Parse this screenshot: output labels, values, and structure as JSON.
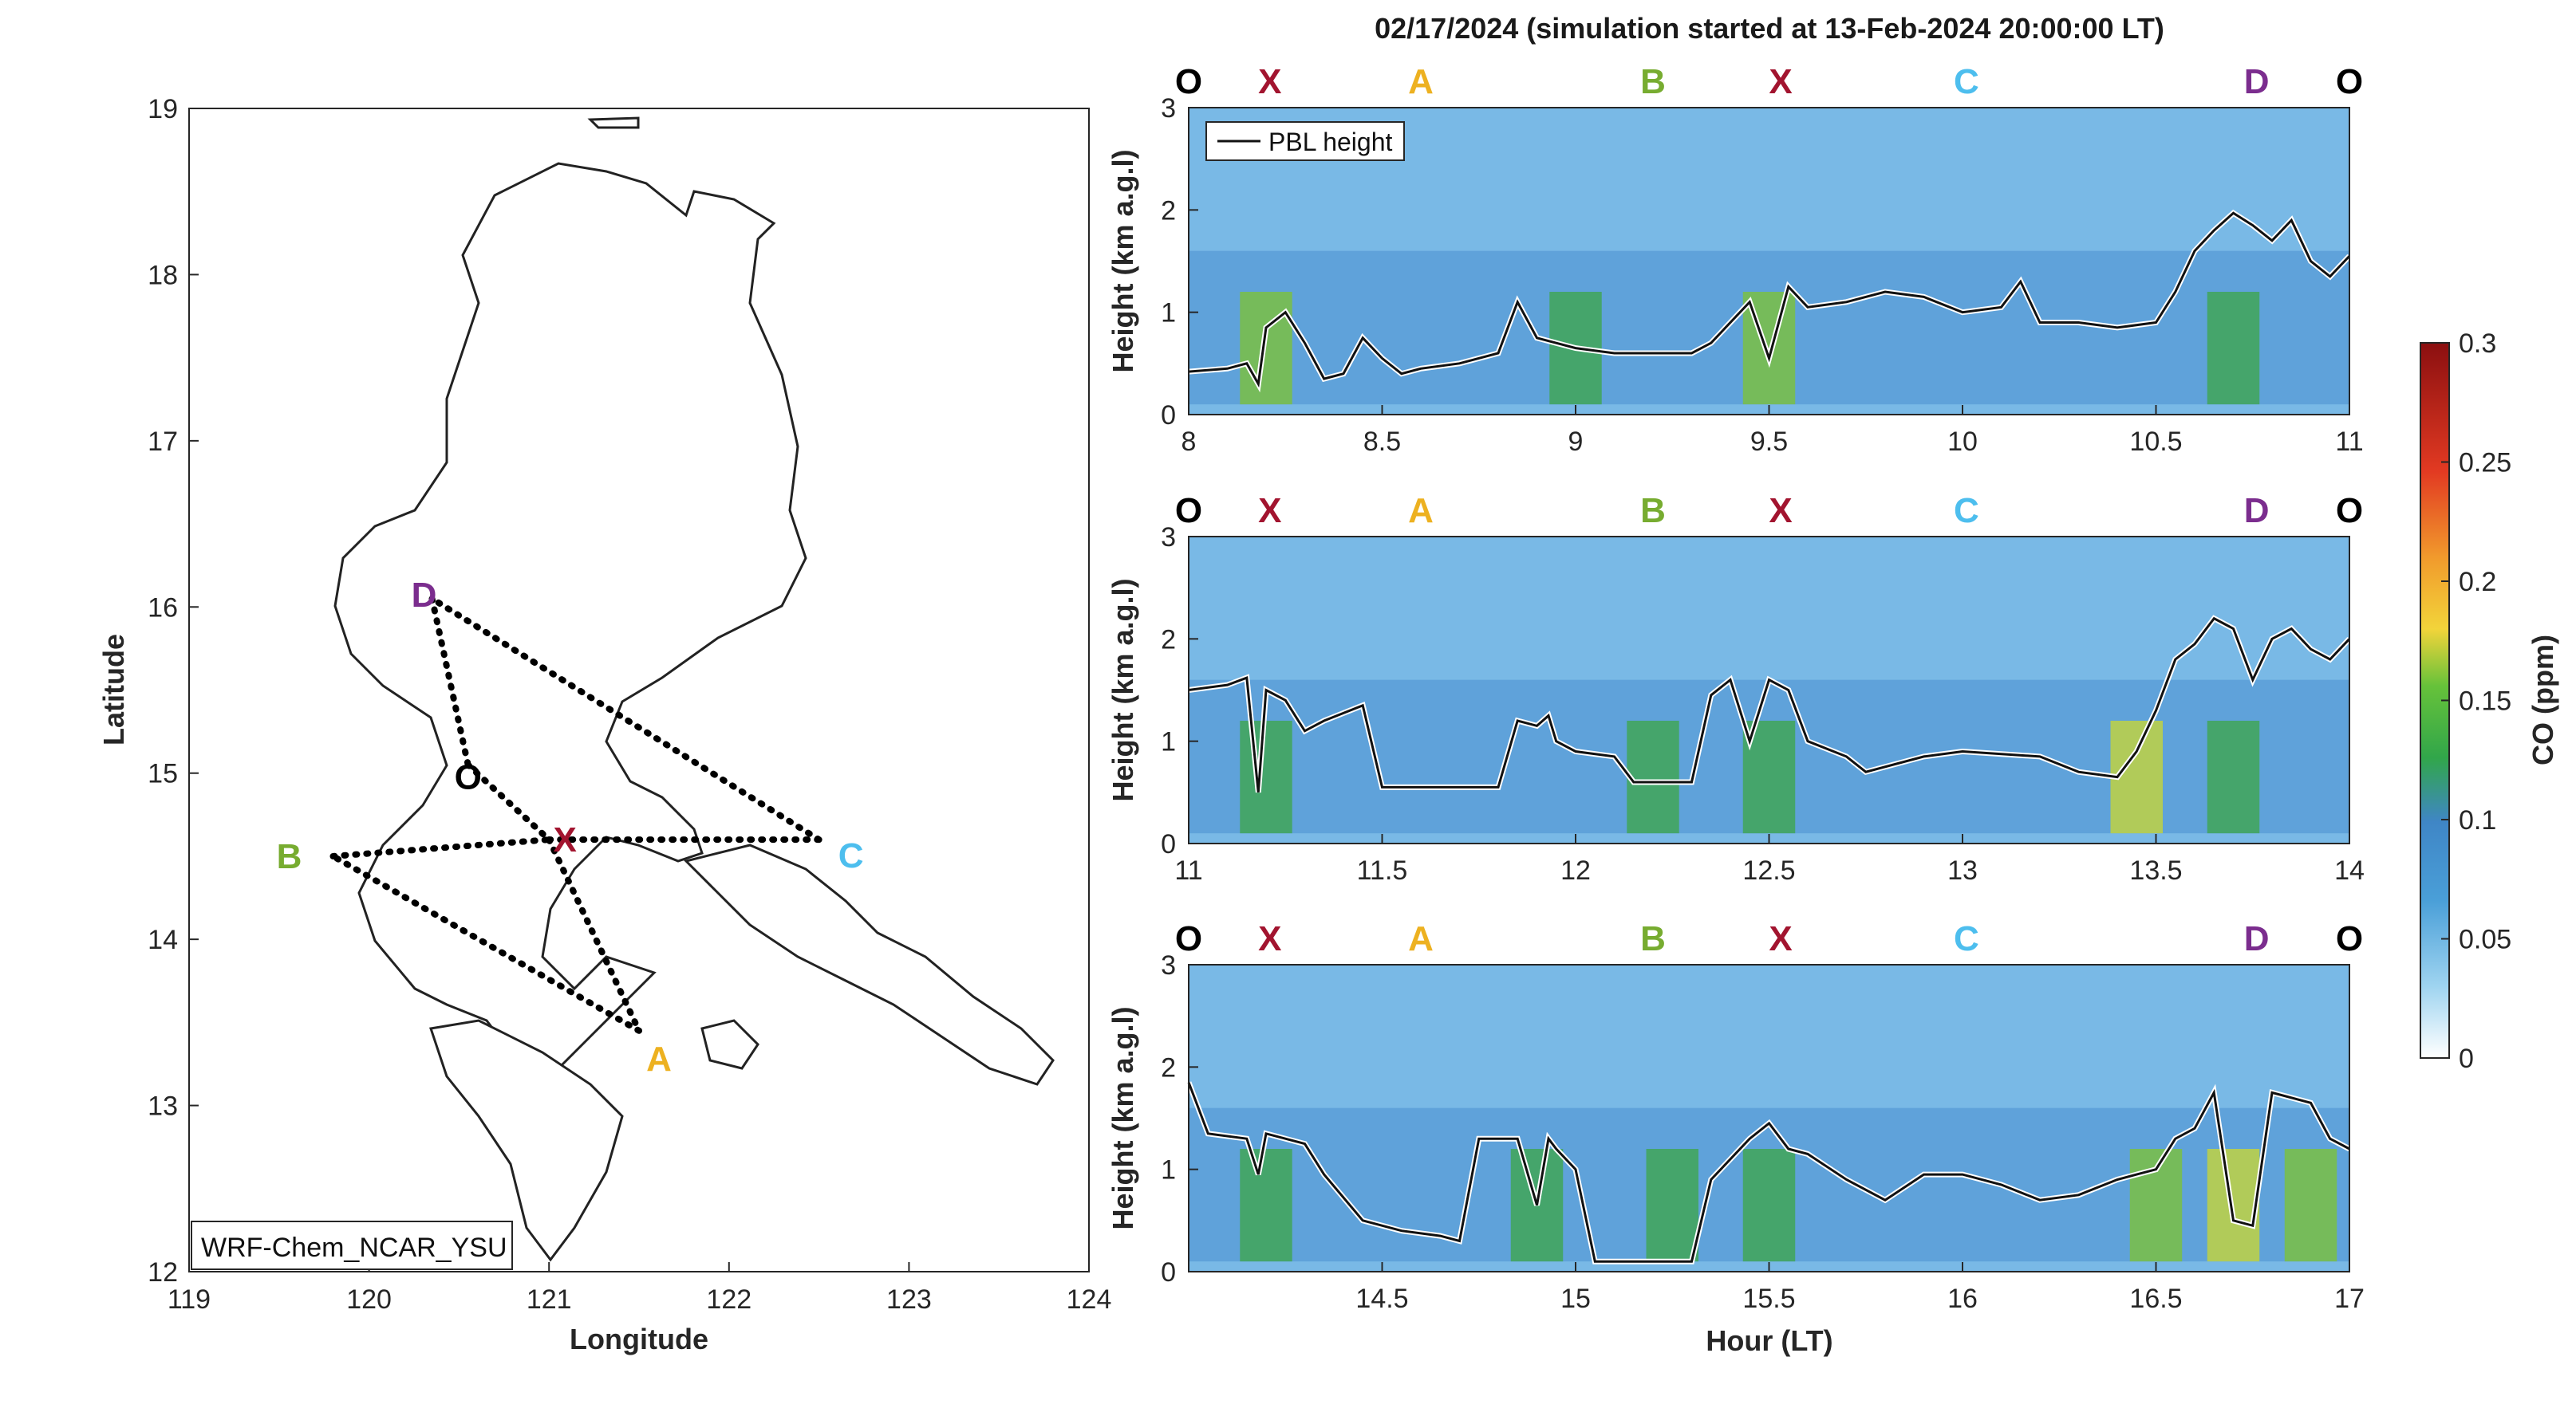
{
  "chart_data": [
    {
      "type": "map",
      "xlabel": "Longitude",
      "ylabel": "Latitude",
      "xlim": [
        119,
        124
      ],
      "ylim": [
        12,
        19
      ],
      "xticks": [
        "119",
        "120",
        "121",
        "122",
        "123",
        "124"
      ],
      "yticks": [
        "12",
        "13",
        "14",
        "15",
        "16",
        "17",
        "18",
        "19"
      ],
      "model_label": "WRF-Chem_NCAR_YSU",
      "points": [
        {
          "label": "D",
          "lon": 120.35,
          "lat": 16.05,
          "color": "#7B2D8E"
        },
        {
          "label": "O",
          "lon": 120.55,
          "lat": 15.05,
          "color": "#000000"
        },
        {
          "label": "X",
          "lon": 121.0,
          "lat": 14.6,
          "color": "#A2142F"
        },
        {
          "label": "B",
          "lon": 119.8,
          "lat": 14.5,
          "color": "#77AC30"
        },
        {
          "label": "C",
          "lon": 122.5,
          "lat": 14.6,
          "color": "#4DBEEE"
        },
        {
          "label": "A",
          "lon": 121.5,
          "lat": 13.45,
          "color": "#EDB120"
        }
      ],
      "route": [
        [
          "D",
          "O"
        ],
        [
          "O",
          "X"
        ],
        [
          "X",
          "A"
        ],
        [
          "A",
          "B"
        ],
        [
          "B",
          "X"
        ],
        [
          "X",
          "C"
        ],
        [
          "C",
          "D"
        ]
      ]
    },
    {
      "type": "heatmap",
      "title": "02/17/2024 (simulation started at 13-Feb-2024 20:00:00 LT)",
      "xlabel": "Hour (LT)",
      "ylabel": "Height (km a.g.l)",
      "legend": "PBL height",
      "colorbar": {
        "label": "CO (ppm)",
        "range": [
          0,
          0.3
        ],
        "ticks": [
          "0",
          "0.05",
          "0.1",
          "0.15",
          "0.2",
          "0.25",
          "0.3"
        ]
      },
      "waypoint_markers": [
        {
          "label": "O",
          "frac": 0.0,
          "color": "#000000"
        },
        {
          "label": "X",
          "frac": 0.07,
          "color": "#A2142F"
        },
        {
          "label": "A",
          "frac": 0.2,
          "color": "#EDB120"
        },
        {
          "label": "B",
          "frac": 0.4,
          "color": "#77AC30"
        },
        {
          "label": "X",
          "frac": 0.51,
          "color": "#A2142F"
        },
        {
          "label": "C",
          "frac": 0.67,
          "color": "#4DBEEE"
        },
        {
          "label": "D",
          "frac": 0.92,
          "color": "#7B2D8E"
        },
        {
          "label": "O",
          "frac": 1.0,
          "color": "#000000"
        }
      ],
      "panels": [
        {
          "xlim": [
            8,
            11
          ],
          "ylim": [
            0,
            3
          ],
          "xticks": [
            "8",
            "8.5",
            "9",
            "9.5",
            "10",
            "10.5",
            "11"
          ],
          "yticks": [
            "0",
            "1",
            "2",
            "3"
          ],
          "pbl_height": [
            [
              8.0,
              0.42
            ],
            [
              8.1,
              0.45
            ],
            [
              8.15,
              0.5
            ],
            [
              8.18,
              0.3
            ],
            [
              8.2,
              0.85
            ],
            [
              8.25,
              1.0
            ],
            [
              8.3,
              0.7
            ],
            [
              8.35,
              0.35
            ],
            [
              8.4,
              0.4
            ],
            [
              8.45,
              0.75
            ],
            [
              8.5,
              0.55
            ],
            [
              8.55,
              0.4
            ],
            [
              8.6,
              0.45
            ],
            [
              8.7,
              0.5
            ],
            [
              8.8,
              0.6
            ],
            [
              8.85,
              1.1
            ],
            [
              8.9,
              0.75
            ],
            [
              8.95,
              0.7
            ],
            [
              9.0,
              0.65
            ],
            [
              9.1,
              0.6
            ],
            [
              9.3,
              0.6
            ],
            [
              9.35,
              0.7
            ],
            [
              9.45,
              1.1
            ],
            [
              9.5,
              0.55
            ],
            [
              9.55,
              1.25
            ],
            [
              9.6,
              1.05
            ],
            [
              9.7,
              1.1
            ],
            [
              9.8,
              1.2
            ],
            [
              9.9,
              1.15
            ],
            [
              10.0,
              1.0
            ],
            [
              10.1,
              1.05
            ],
            [
              10.15,
              1.3
            ],
            [
              10.2,
              0.9
            ],
            [
              10.3,
              0.9
            ],
            [
              10.4,
              0.85
            ],
            [
              10.5,
              0.9
            ],
            [
              10.55,
              1.2
            ],
            [
              10.6,
              1.6
            ],
            [
              10.65,
              1.8
            ],
            [
              10.7,
              1.97
            ],
            [
              10.75,
              1.85
            ],
            [
              10.8,
              1.7
            ],
            [
              10.85,
              1.9
            ],
            [
              10.9,
              1.5
            ],
            [
              10.95,
              1.35
            ],
            [
              11.0,
              1.55
            ]
          ],
          "co_hotspots": [
            {
              "hour": 8.2,
              "co": 0.15
            },
            {
              "hour": 9.0,
              "co": 0.12
            },
            {
              "hour": 9.5,
              "co": 0.14
            },
            {
              "hour": 10.7,
              "co": 0.12
            }
          ]
        },
        {
          "xlim": [
            11,
            14
          ],
          "ylim": [
            0,
            3
          ],
          "xticks": [
            "11",
            "11.5",
            "12",
            "12.5",
            "13",
            "13.5",
            "14"
          ],
          "yticks": [
            "0",
            "1",
            "2",
            "3"
          ],
          "pbl_height": [
            [
              11.0,
              1.5
            ],
            [
              11.1,
              1.55
            ],
            [
              11.15,
              1.62
            ],
            [
              11.18,
              0.5
            ],
            [
              11.2,
              1.5
            ],
            [
              11.25,
              1.4
            ],
            [
              11.3,
              1.1
            ],
            [
              11.35,
              1.2
            ],
            [
              11.45,
              1.35
            ],
            [
              11.5,
              0.55
            ],
            [
              11.6,
              0.55
            ],
            [
              11.7,
              0.55
            ],
            [
              11.8,
              0.55
            ],
            [
              11.85,
              1.2
            ],
            [
              11.9,
              1.15
            ],
            [
              11.93,
              1.25
            ],
            [
              11.95,
              1.0
            ],
            [
              12.0,
              0.9
            ],
            [
              12.1,
              0.85
            ],
            [
              12.15,
              0.6
            ],
            [
              12.3,
              0.6
            ],
            [
              12.35,
              1.45
            ],
            [
              12.4,
              1.6
            ],
            [
              12.45,
              1.0
            ],
            [
              12.5,
              1.6
            ],
            [
              12.55,
              1.5
            ],
            [
              12.6,
              1.0
            ],
            [
              12.7,
              0.85
            ],
            [
              12.75,
              0.7
            ],
            [
              12.9,
              0.85
            ],
            [
              13.0,
              0.9
            ],
            [
              13.2,
              0.85
            ],
            [
              13.3,
              0.7
            ],
            [
              13.4,
              0.65
            ],
            [
              13.45,
              0.9
            ],
            [
              13.5,
              1.3
            ],
            [
              13.55,
              1.8
            ],
            [
              13.6,
              1.95
            ],
            [
              13.65,
              2.2
            ],
            [
              13.7,
              2.1
            ],
            [
              13.75,
              1.6
            ],
            [
              13.8,
              2.0
            ],
            [
              13.85,
              2.1
            ],
            [
              13.9,
              1.9
            ],
            [
              13.95,
              1.8
            ],
            [
              14.0,
              2.0
            ]
          ],
          "co_hotspots": [
            {
              "hour": 11.2,
              "co": 0.12
            },
            {
              "hour": 12.2,
              "co": 0.12
            },
            {
              "hour": 12.5,
              "co": 0.13
            },
            {
              "hour": 13.45,
              "co": 0.16
            },
            {
              "hour": 13.7,
              "co": 0.13
            }
          ]
        },
        {
          "xlim": [
            14,
            17
          ],
          "ylim": [
            0,
            3
          ],
          "xticks": [
            "14.5",
            "15",
            "15.5",
            "16",
            "16.5",
            "17"
          ],
          "yticks": [
            "0",
            "1",
            "2",
            "3"
          ],
          "pbl_height": [
            [
              14.0,
              1.85
            ],
            [
              14.05,
              1.35
            ],
            [
              14.15,
              1.3
            ],
            [
              14.18,
              0.95
            ],
            [
              14.2,
              1.35
            ],
            [
              14.3,
              1.25
            ],
            [
              14.35,
              0.95
            ],
            [
              14.45,
              0.5
            ],
            [
              14.55,
              0.4
            ],
            [
              14.65,
              0.35
            ],
            [
              14.7,
              0.3
            ],
            [
              14.75,
              1.3
            ],
            [
              14.85,
              1.3
            ],
            [
              14.9,
              0.65
            ],
            [
              14.93,
              1.3
            ],
            [
              14.95,
              1.2
            ],
            [
              15.0,
              1.0
            ],
            [
              15.05,
              0.1
            ],
            [
              15.15,
              0.1
            ],
            [
              15.3,
              0.1
            ],
            [
              15.35,
              0.9
            ],
            [
              15.45,
              1.3
            ],
            [
              15.5,
              1.45
            ],
            [
              15.55,
              1.2
            ],
            [
              15.6,
              1.15
            ],
            [
              15.7,
              0.9
            ],
            [
              15.8,
              0.7
            ],
            [
              15.9,
              0.95
            ],
            [
              16.0,
              0.95
            ],
            [
              16.1,
              0.85
            ],
            [
              16.2,
              0.7
            ],
            [
              16.3,
              0.75
            ],
            [
              16.4,
              0.9
            ],
            [
              16.45,
              0.95
            ],
            [
              16.5,
              1.0
            ],
            [
              16.55,
              1.3
            ],
            [
              16.6,
              1.4
            ],
            [
              16.65,
              1.75
            ],
            [
              16.7,
              0.5
            ],
            [
              16.75,
              0.45
            ],
            [
              16.8,
              1.75
            ],
            [
              16.9,
              1.65
            ],
            [
              16.95,
              1.3
            ],
            [
              17.0,
              1.2
            ]
          ],
          "co_hotspots": [
            {
              "hour": 14.2,
              "co": 0.11
            },
            {
              "hour": 14.9,
              "co": 0.13
            },
            {
              "hour": 15.25,
              "co": 0.12
            },
            {
              "hour": 15.5,
              "co": 0.11
            },
            {
              "hour": 16.5,
              "co": 0.15
            },
            {
              "hour": 16.7,
              "co": 0.17
            },
            {
              "hour": 16.9,
              "co": 0.14
            }
          ]
        }
      ]
    }
  ]
}
